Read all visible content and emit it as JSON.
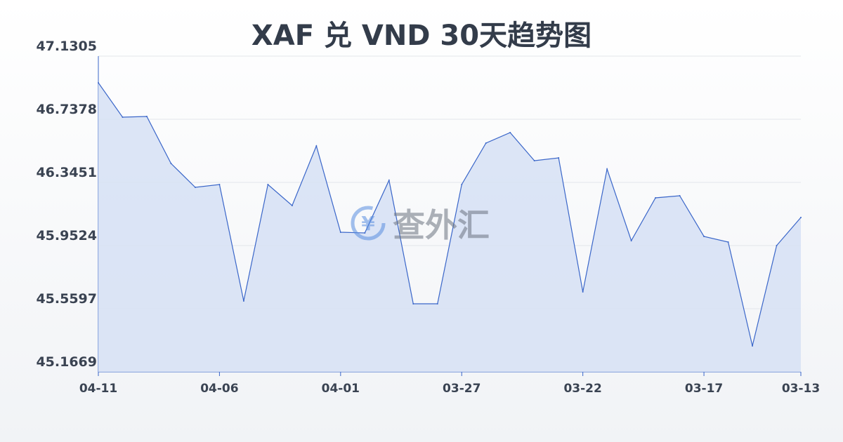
{
  "chart_data": {
    "type": "area",
    "title": "XAF 兑 VND 30天趋势图",
    "xlabel": "",
    "ylabel": "",
    "x": [
      "04-11",
      "04-10",
      "04-09",
      "04-08",
      "04-07",
      "04-06",
      "04-05",
      "04-04",
      "04-03",
      "04-02",
      "04-01",
      "03-31",
      "03-30",
      "03-29",
      "03-28",
      "03-27",
      "03-26",
      "03-25",
      "03-24",
      "03-23",
      "03-22",
      "03-21",
      "03-20",
      "03-19",
      "03-18",
      "03-17",
      "03-16",
      "03-15",
      "03-14",
      "03-13"
    ],
    "values": [
      46.9647,
      46.7509,
      46.7553,
      46.4629,
      46.3145,
      46.332,
      45.6076,
      46.332,
      46.2011,
      46.572,
      46.0353,
      46.0309,
      46.3582,
      45.5902,
      45.5902,
      46.332,
      46.5894,
      46.6549,
      46.4803,
      46.4978,
      45.6644,
      46.428,
      45.9829,
      46.2491,
      46.2622,
      46.0091,
      45.9742,
      45.3284,
      45.9524,
      46.1269
    ],
    "x_tick_labels": [
      "04-11",
      "04-06",
      "04-01",
      "03-27",
      "03-22",
      "03-17",
      "03-13"
    ],
    "y_tick_labels": [
      "47.1305",
      "46.7378",
      "46.3451",
      "45.9524",
      "45.5597",
      "45.1669"
    ],
    "ylim": [
      45.1669,
      47.1305
    ],
    "grid": true,
    "line_color": "#3a66c9",
    "fill_color": "#d6e0f5"
  },
  "watermark": "查外汇"
}
